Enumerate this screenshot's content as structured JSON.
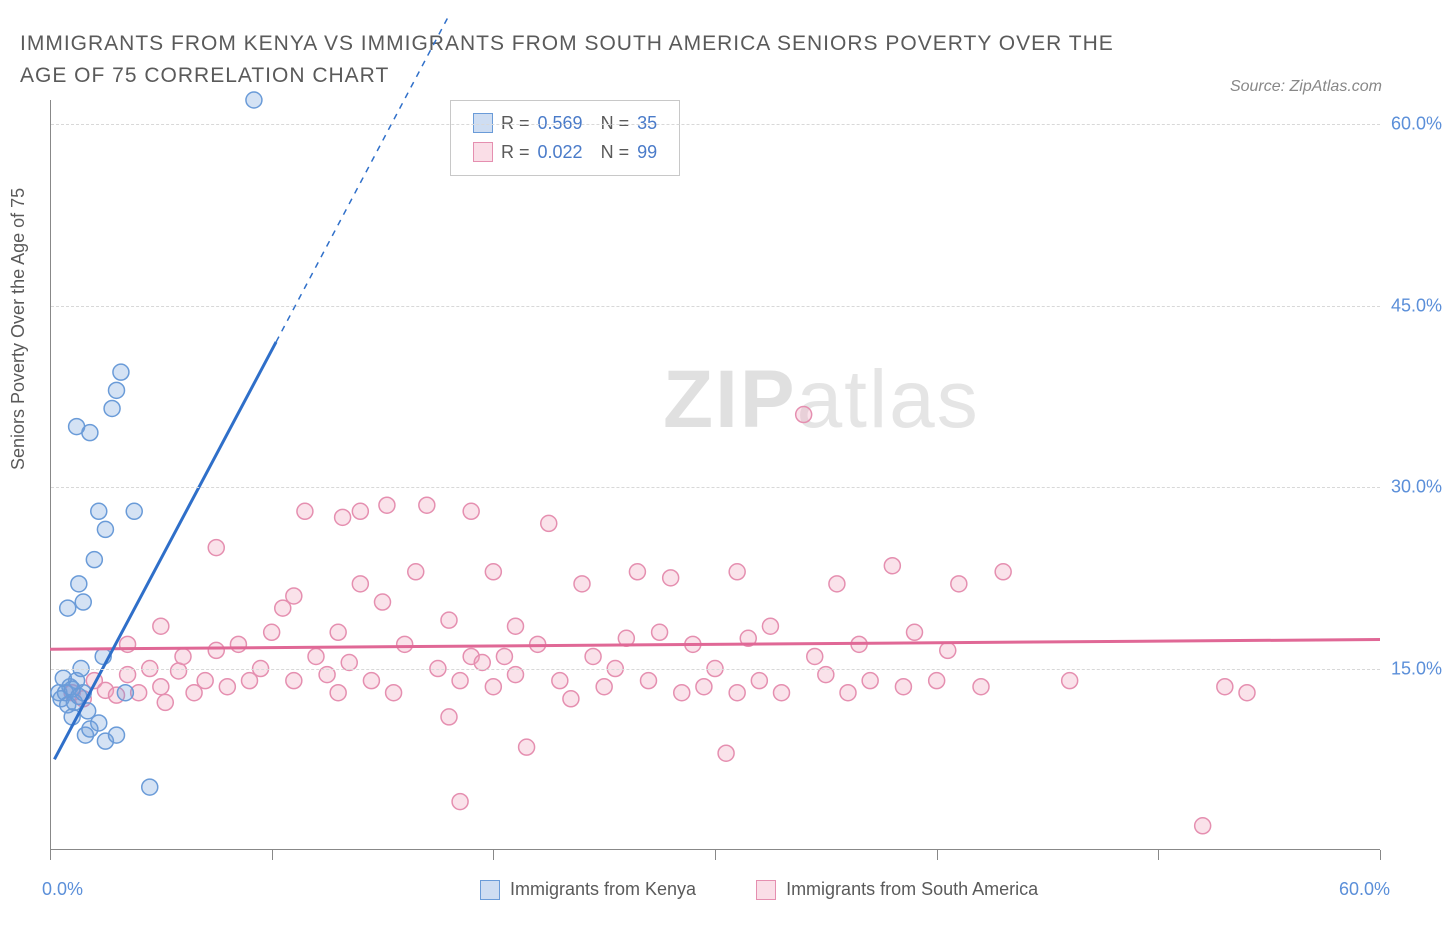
{
  "title": "IMMIGRANTS FROM KENYA VS IMMIGRANTS FROM SOUTH AMERICA SENIORS POVERTY OVER THE AGE OF 75 CORRELATION CHART",
  "source": "Source: ZipAtlas.com",
  "y_axis_label": "Seniors Poverty Over the Age of 75",
  "watermark_bold": "ZIP",
  "watermark_rest": "atlas",
  "chart": {
    "type": "scatter",
    "xlim": [
      0,
      60
    ],
    "ylim": [
      0,
      62
    ],
    "x_tick_positions": [
      0,
      10,
      20,
      30,
      40,
      50,
      60
    ],
    "y_ticks": [
      15,
      30,
      45,
      60
    ],
    "y_tick_labels": [
      "15.0%",
      "30.0%",
      "45.0%",
      "60.0%"
    ],
    "x_min_label": "0.0%",
    "x_max_label": "60.0%",
    "background_color": "#ffffff",
    "grid_color": "#d8d8d8",
    "marker_radius": 8,
    "marker_stroke_width": 1.5,
    "trend_line_width": 3,
    "series": [
      {
        "name": "Immigrants from Kenya",
        "color_fill": "rgba(114,159,218,0.30)",
        "color_stroke": "#6a9bd8",
        "trend_color": "#2f6fc9",
        "R": "0.569",
        "N": "35",
        "trend": {
          "x1": 0.2,
          "y1": 7.5,
          "x2": 10.2,
          "y2": 42,
          "extend_x2": 18,
          "extend_y2": 69
        },
        "points": [
          [
            0.4,
            13
          ],
          [
            0.5,
            12.5
          ],
          [
            0.7,
            13
          ],
          [
            0.8,
            12
          ],
          [
            0.9,
            13.5
          ],
          [
            1.0,
            11
          ],
          [
            1.2,
            14
          ],
          [
            1.1,
            12.2
          ],
          [
            1.4,
            15
          ],
          [
            1.5,
            13
          ],
          [
            1.6,
            9.5
          ],
          [
            1.8,
            10
          ],
          [
            0.6,
            14.2
          ],
          [
            1.0,
            13.3
          ],
          [
            1.3,
            12.7
          ],
          [
            1.7,
            11.5
          ],
          [
            2.2,
            10.5
          ],
          [
            2.5,
            9
          ],
          [
            3.0,
            9.5
          ],
          [
            4.5,
            5.2
          ],
          [
            0.8,
            20
          ],
          [
            1.5,
            20.5
          ],
          [
            1.3,
            22
          ],
          [
            2.0,
            24
          ],
          [
            2.5,
            26.5
          ],
          [
            2.2,
            28
          ],
          [
            3.8,
            28
          ],
          [
            1.8,
            34.5
          ],
          [
            2.8,
            36.5
          ],
          [
            3.0,
            38
          ],
          [
            3.2,
            39.5
          ],
          [
            1.2,
            35
          ],
          [
            9.2,
            62
          ],
          [
            2.4,
            16
          ],
          [
            3.4,
            13
          ]
        ]
      },
      {
        "name": "Immigrants from South America",
        "color_fill": "rgba(240,160,185,0.30)",
        "color_stroke": "#e58fb0",
        "trend_color": "#e06896",
        "R": "0.022",
        "N": "99",
        "trend": {
          "x1": 0,
          "y1": 16.6,
          "x2": 60,
          "y2": 17.4
        },
        "points": [
          [
            1,
            13
          ],
          [
            1.5,
            12.5
          ],
          [
            2,
            14
          ],
          [
            2.5,
            13.2
          ],
          [
            3,
            12.8
          ],
          [
            3.5,
            14.5
          ],
          [
            4,
            13
          ],
          [
            4.5,
            15
          ],
          [
            5,
            13.5
          ],
          [
            5.2,
            12.2
          ],
          [
            5.8,
            14.8
          ],
          [
            6,
            16
          ],
          [
            6.5,
            13
          ],
          [
            7,
            14
          ],
          [
            7.5,
            16.5
          ],
          [
            8,
            13.5
          ],
          [
            9,
            14
          ],
          [
            10,
            18
          ],
          [
            10.5,
            20
          ],
          [
            11,
            21
          ],
          [
            11.5,
            28
          ],
          [
            12,
            16
          ],
          [
            12.5,
            14.5
          ],
          [
            13,
            13
          ],
          [
            13.2,
            27.5
          ],
          [
            13.5,
            15.5
          ],
          [
            14,
            22
          ],
          [
            14.5,
            14
          ],
          [
            15,
            20.5
          ],
          [
            15.2,
            28.5
          ],
          [
            15.5,
            13
          ],
          [
            16,
            17
          ],
          [
            16.5,
            23
          ],
          [
            17,
            28.5
          ],
          [
            17.5,
            15
          ],
          [
            18,
            11
          ],
          [
            18,
            19
          ],
          [
            18.5,
            14
          ],
          [
            18.5,
            4
          ],
          [
            19,
            16
          ],
          [
            19.5,
            15.5
          ],
          [
            20,
            13.5
          ],
          [
            20,
            23
          ],
          [
            20.5,
            16
          ],
          [
            21,
            18.5
          ],
          [
            21.5,
            8.5
          ],
          [
            22,
            17
          ],
          [
            22.5,
            27
          ],
          [
            23,
            14
          ],
          [
            23.5,
            12.5
          ],
          [
            24,
            22
          ],
          [
            24.5,
            16
          ],
          [
            25,
            13.5
          ],
          [
            25.5,
            15
          ],
          [
            26,
            17.5
          ],
          [
            26.5,
            23
          ],
          [
            27,
            14
          ],
          [
            27.5,
            18
          ],
          [
            28,
            22.5
          ],
          [
            28.5,
            13
          ],
          [
            29,
            17
          ],
          [
            29.5,
            13.5
          ],
          [
            30,
            15
          ],
          [
            30.5,
            8
          ],
          [
            31,
            13
          ],
          [
            31,
            23
          ],
          [
            31.5,
            17.5
          ],
          [
            32,
            14
          ],
          [
            32.5,
            18.5
          ],
          [
            33,
            13
          ],
          [
            34,
            36
          ],
          [
            34.5,
            16
          ],
          [
            35,
            14.5
          ],
          [
            35.5,
            22
          ],
          [
            36,
            13
          ],
          [
            36.5,
            17
          ],
          [
            37,
            14
          ],
          [
            38,
            23.5
          ],
          [
            38.5,
            13.5
          ],
          [
            39,
            18
          ],
          [
            40,
            14
          ],
          [
            40.5,
            16.5
          ],
          [
            41,
            22
          ],
          [
            42,
            13.5
          ],
          [
            43,
            23
          ],
          [
            46,
            14
          ],
          [
            52,
            2
          ],
          [
            53,
            13.5
          ],
          [
            54,
            13
          ],
          [
            3.5,
            17
          ],
          [
            5,
            18.5
          ],
          [
            7.5,
            25
          ],
          [
            8.5,
            17
          ],
          [
            9.5,
            15
          ],
          [
            11,
            14
          ],
          [
            13,
            18
          ],
          [
            14,
            28
          ],
          [
            19,
            28
          ],
          [
            21,
            14.5
          ]
        ]
      }
    ]
  },
  "bottom_legend": [
    {
      "label": "Immigrants from Kenya",
      "class": "legend-blue"
    },
    {
      "label": "Immigrants from South America",
      "class": "legend-pink"
    }
  ]
}
